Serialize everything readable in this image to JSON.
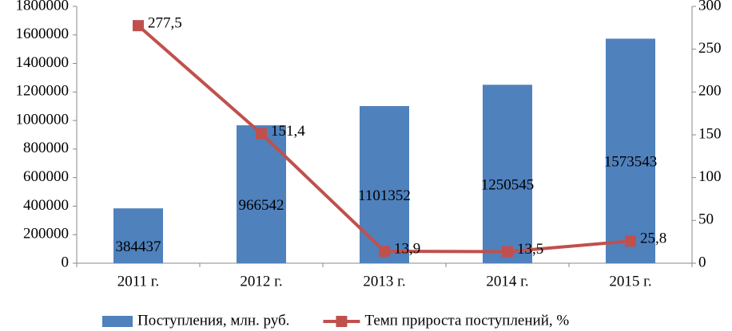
{
  "chart_data": {
    "type": "bar",
    "categories": [
      "2011 г.",
      "2012 г.",
      "2013 г.",
      "2014 г.",
      "2015 г."
    ],
    "series": [
      {
        "name": "Поступления, млн. руб.",
        "type": "bar",
        "color": "#4f81bd",
        "values": [
          384437,
          966542,
          1101352,
          1250545,
          1573543
        ]
      },
      {
        "name": "Темп прироста поступлений, %",
        "type": "line",
        "axis": "y2",
        "color": "#c0504d",
        "values": [
          277.5,
          151.4,
          13.9,
          13.5,
          25.8
        ],
        "value_labels": [
          "277,5",
          "151,4",
          "13,9",
          "13,5",
          "25,8"
        ]
      }
    ],
    "ylim": [
      0,
      1800000
    ],
    "yticks": [
      0,
      200000,
      400000,
      600000,
      800000,
      1000000,
      1200000,
      1400000,
      1600000,
      1800000
    ],
    "y2lim": [
      0,
      300
    ],
    "y2ticks": [
      0,
      50,
      100,
      150,
      200,
      250,
      300
    ],
    "grid": false,
    "legend": "bottom"
  }
}
